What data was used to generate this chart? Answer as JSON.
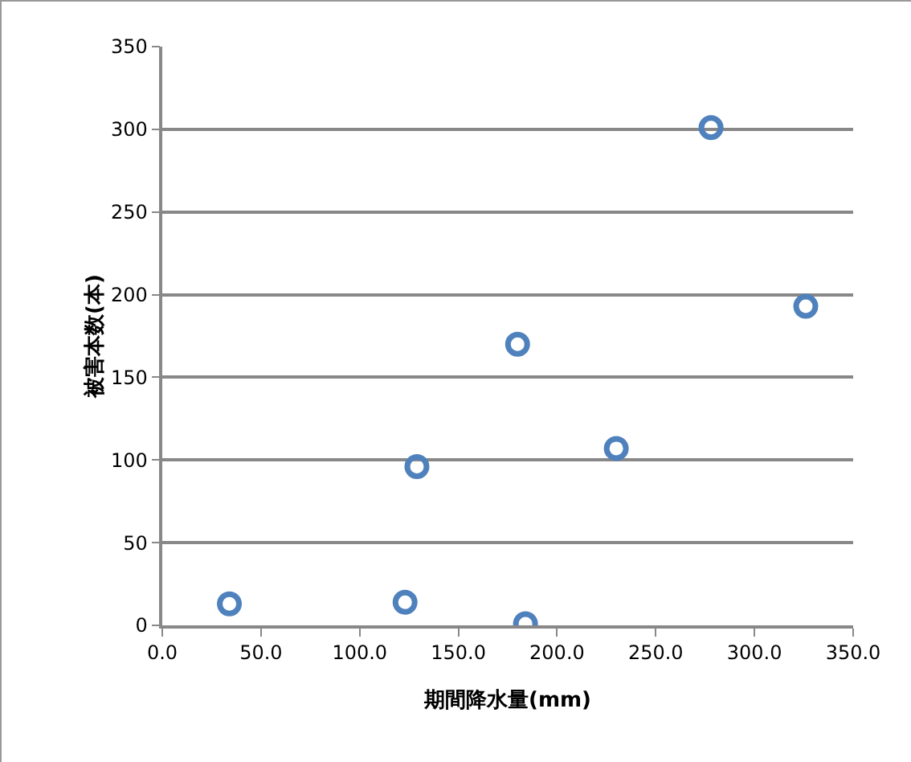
{
  "chart_data": {
    "type": "scatter",
    "xlabel": "期間降水量(mm)",
    "ylabel": "被害本数(本)",
    "x": [
      34,
      123,
      129,
      180,
      184,
      230,
      278,
      326
    ],
    "series": [
      {
        "color": "#4f81bd",
        "values": [
          13,
          14,
          96,
          170,
          1,
          107,
          301,
          193
        ]
      }
    ],
    "xlim": [
      0,
      350
    ],
    "xticks": [
      {
        "value": 0,
        "label": "0.0"
      },
      {
        "value": 50,
        "label": "50.0"
      },
      {
        "value": 100,
        "label": "100.0"
      },
      {
        "value": 150,
        "label": "150.0"
      },
      {
        "value": 200,
        "label": "200.0"
      },
      {
        "value": 250,
        "label": "250.0"
      },
      {
        "value": 300,
        "label": "300.0"
      },
      {
        "value": 350,
        "label": "350.0"
      }
    ],
    "ylim": [
      0,
      350
    ],
    "yticks": [
      0,
      50,
      100,
      150,
      200,
      250,
      300,
      350
    ],
    "grid": "y",
    "marker": "circle",
    "legend": false
  }
}
